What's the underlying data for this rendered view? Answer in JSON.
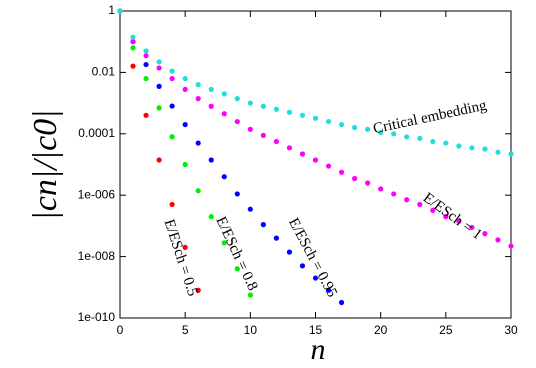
{
  "chart_data": {
    "type": "scatter",
    "log_y": true,
    "xlabel": "n",
    "ylabel": "|cn|/|c0|",
    "xlim": [
      0,
      30
    ],
    "xticks": [
      0,
      5,
      10,
      15,
      20,
      25,
      30
    ],
    "ylim": [
      1e-10,
      1
    ],
    "yticks": [
      1,
      0.01,
      0.0001,
      {
        "value": 1e-06,
        "label": "1e-006"
      },
      {
        "value": 1e-08,
        "label": "1e-008"
      },
      {
        "value": 1e-10,
        "label": "1e-010"
      }
    ],
    "annotations": [
      "Critical embedding",
      "E/ESch = 1",
      "E/ESch = 0.95",
      "E/ESch = 0.8",
      "E/ESch = 0.5"
    ],
    "series": [
      {
        "color": "#ff0000",
        "x": [
          0,
          1,
          2,
          3,
          4,
          5,
          6
        ],
        "values": [
          1,
          0.016,
          0.0004,
          1.4e-05,
          5e-07,
          2e-08,
          8e-10
        ]
      },
      {
        "color": "#00ee00",
        "x": [
          0,
          1,
          2,
          3,
          4,
          5,
          6,
          7,
          8,
          9,
          10
        ],
        "values": [
          1,
          0.063,
          0.0063,
          0.0007,
          8e-05,
          1e-05,
          1.4e-06,
          2e-07,
          2.8e-08,
          4e-09,
          5.6e-10
        ]
      },
      {
        "color": "#0000ff",
        "x": [
          0,
          1,
          2,
          3,
          4,
          5,
          6,
          7,
          8,
          9,
          10,
          11,
          12,
          13,
          14,
          15,
          16,
          17
        ],
        "values": [
          1,
          0.1,
          0.018,
          0.0035,
          0.0008,
          0.0002,
          5e-05,
          1.4e-05,
          4e-06,
          1.1e-06,
          3.5e-07,
          1.1e-07,
          4e-08,
          1.4e-08,
          5e-09,
          2e-09,
          8e-10,
          3.2e-10
        ]
      },
      {
        "color": "#ff00ff",
        "x": [
          0,
          1,
          2,
          3,
          4,
          5,
          6,
          7,
          8,
          9,
          10,
          11,
          12,
          13,
          14,
          15,
          16,
          17,
          18,
          19,
          20,
          21,
          22,
          23,
          24,
          25,
          26,
          27,
          28,
          29,
          30
        ],
        "values": [
          1,
          0.1,
          0.035,
          0.014,
          0.0063,
          0.0028,
          0.0014,
          0.00079,
          0.00045,
          0.00025,
          0.00014,
          8.9e-05,
          5.6e-05,
          3.5e-05,
          2.2e-05,
          1.4e-05,
          8.9e-06,
          5.6e-06,
          3.5e-06,
          2.5e-06,
          1.6e-06,
          1.1e-06,
          7.1e-07,
          5e-07,
          3.2e-07,
          2e-07,
          1.4e-07,
          8.9e-08,
          5.6e-08,
          3.5e-08,
          2.2e-08
        ]
      },
      {
        "color": "#22dddd",
        "x": [
          0,
          1,
          2,
          3,
          4,
          5,
          6,
          7,
          8,
          9,
          10,
          11,
          12,
          13,
          14,
          15,
          16,
          17,
          18,
          19,
          20,
          21,
          22,
          23,
          24,
          25,
          26,
          27,
          28,
          29,
          30
        ],
        "values": [
          1,
          0.14,
          0.05,
          0.022,
          0.011,
          0.0063,
          0.004,
          0.0028,
          0.002,
          0.0014,
          0.001,
          0.00079,
          0.00063,
          0.0005,
          0.0004,
          0.00032,
          0.00025,
          0.0002,
          0.00016,
          0.00014,
          0.00011,
          0.0001,
          7.9e-05,
          7.1e-05,
          5.6e-05,
          5e-05,
          4e-05,
          3.5e-05,
          3.2e-05,
          2.5e-05,
          2.2e-05
        ]
      }
    ]
  }
}
